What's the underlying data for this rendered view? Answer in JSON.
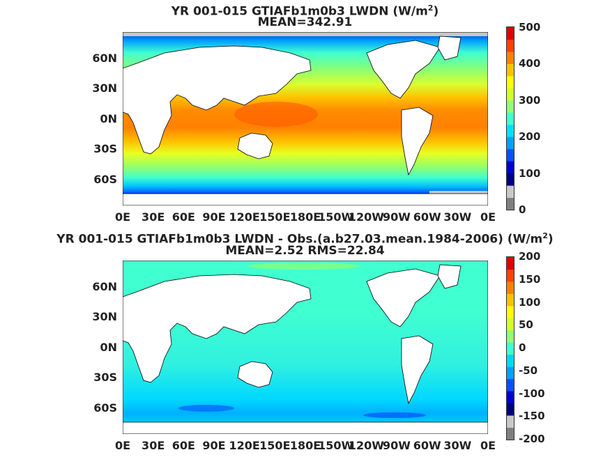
{
  "panels": [
    {
      "title_main": "YR 001-015 GTIAFb1m0b3 LWDN (W/m",
      "title_sup": "2",
      "title_close": ")",
      "subtitle": "MEAN=342.91",
      "colorbar_ticks": [
        "500",
        "400",
        "300",
        "200",
        "100",
        "0"
      ],
      "colorbar_colors": [
        "#808080",
        "#c8c8c8",
        "#00007f",
        "#0000d0",
        "#0050ff",
        "#00a0ff",
        "#00e0ff",
        "#40ffd0",
        "#90ff70",
        "#d0ff30",
        "#ffff00",
        "#ffc000",
        "#ff8000",
        "#ff4000",
        "#e00000"
      ]
    },
    {
      "title_main": "YR 001-015 GTIAFb1m0b3 LWDN - Obs.(a.b27.03.mean.1984-2006) (W/m",
      "title_sup": "2",
      "title_close": ")",
      "subtitle": "MEAN=2.52 RMS=22.84",
      "colorbar_ticks": [
        "200",
        "150",
        "100",
        "50",
        "0",
        "-50",
        "-100",
        "-150",
        "-200"
      ],
      "colorbar_colors": [
        "#808080",
        "#c8c8c8",
        "#00007f",
        "#0000d0",
        "#0050ff",
        "#00a0ff",
        "#00d8ff",
        "#40ffd0",
        "#90ff70",
        "#d0ff30",
        "#ffff00",
        "#ffc000",
        "#ff8000",
        "#ff4000",
        "#e00000"
      ]
    }
  ],
  "lat_labels": [
    "60N",
    "30N",
    "0N",
    "30S",
    "60S"
  ],
  "lon_labels": [
    "0E",
    "30E",
    "60E",
    "90E",
    "120E",
    "150E",
    "180E",
    "150W",
    "120W",
    "90W",
    "60W",
    "30W",
    "0E"
  ],
  "colors": {
    "land": "#ffffff",
    "coast": "#000000",
    "ice": "#c8c8c8"
  }
}
